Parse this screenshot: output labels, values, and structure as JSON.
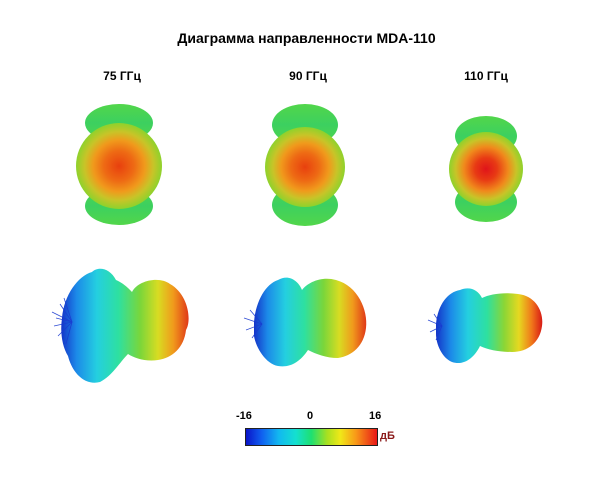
{
  "title": "Диаграмма направленности MDA-110",
  "frequencies": [
    {
      "label": "75 ГГц"
    },
    {
      "label": "90 ГГц"
    },
    {
      "label": "110 ГГц"
    }
  ],
  "colorbar": {
    "min_label": "-16",
    "mid_label": "0",
    "max_label": "16",
    "unit": "дБ",
    "colors": [
      "#0a14c8",
      "#1060f0",
      "#12b8f0",
      "#14e0d0",
      "#1ee070",
      "#a8e020",
      "#f0e818",
      "#f89818",
      "#e81818"
    ]
  }
}
